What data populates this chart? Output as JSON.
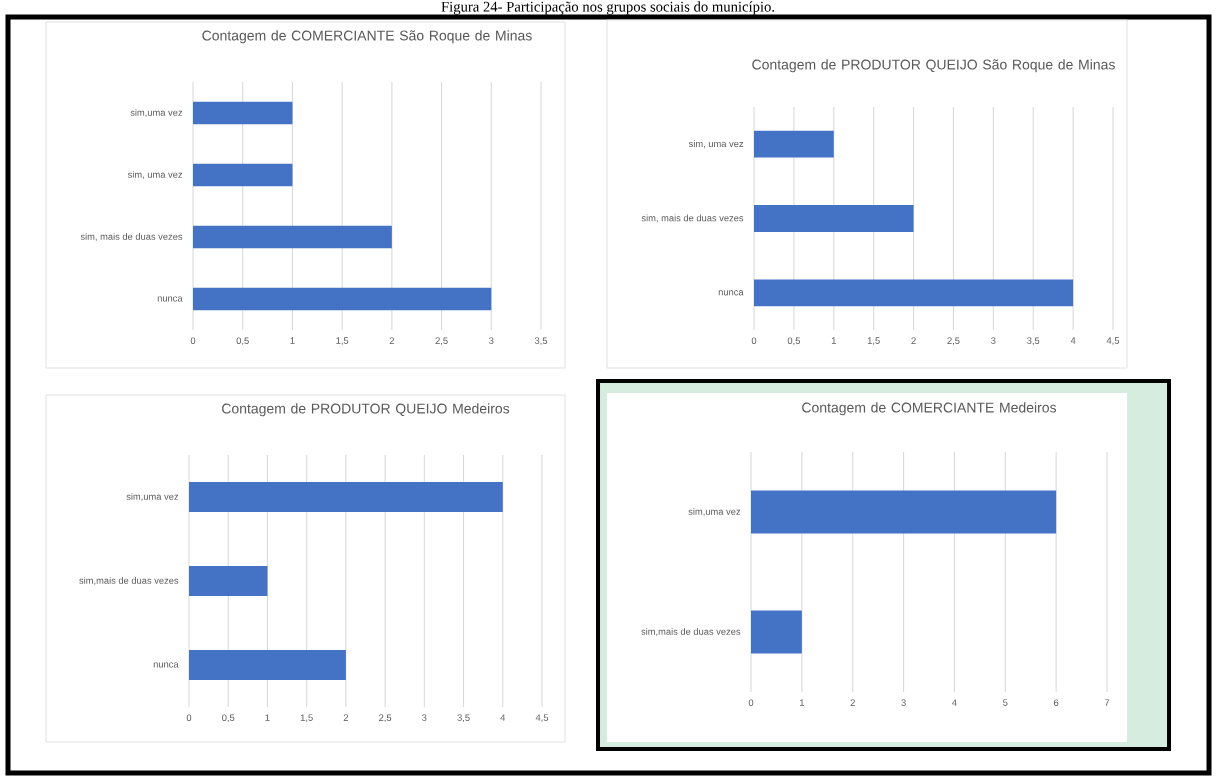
{
  "chart_data": [
    {
      "type": "bar",
      "orientation": "horizontal",
      "title": "Contagem de COMERCIANTE São Roque de Minas",
      "categories": [
        "sim,uma vez",
        "sim, uma vez",
        "sim, mais de duas vezes",
        "nunca"
      ],
      "values": [
        1,
        1,
        2,
        3
      ],
      "color": "#4472c4",
      "xlim": [
        0,
        3.5
      ],
      "xticks": [
        0,
        {
          "value": 0.5,
          "label": "0,5"
        },
        1,
        {
          "value": 1.5,
          "label": "1,5"
        },
        2,
        {
          "value": 2.5,
          "label": "2,5"
        },
        3,
        {
          "value": 3.5,
          "label": "3,5"
        }
      ],
      "grid": "x",
      "annotations": [
        "Figura 24- Participação nos grupos sociais do município."
      ]
    },
    {
      "type": "bar",
      "orientation": "horizontal",
      "title": "Contagem de PRODUTOR QUEIJO São Roque de Minas",
      "categories": [
        "sim, uma vez",
        "sim, mais de duas vezes",
        "nunca"
      ],
      "values": [
        1,
        2,
        4
      ],
      "color": "#4472c4",
      "xlim": [
        0,
        4.5
      ],
      "xticks": [
        0,
        {
          "value": 0.5,
          "label": "0,5"
        },
        1,
        {
          "value": 1.5,
          "label": "1,5"
        },
        2,
        {
          "value": 2.5,
          "label": "2,5"
        },
        3,
        {
          "value": 3.5,
          "label": "3,5"
        },
        4,
        {
          "value": 4.5,
          "label": "4,5"
        }
      ],
      "grid": "x"
    },
    {
      "type": "bar",
      "orientation": "horizontal",
      "title": "Contagem de PRODUTOR QUEIJO Medeiros",
      "categories": [
        "sim,uma vez",
        "sim,mais de duas vezes",
        "nunca"
      ],
      "values": [
        4,
        1,
        2
      ],
      "color": "#4472c4",
      "xlim": [
        0,
        4.5
      ],
      "xticks": [
        0,
        {
          "value": 0.5,
          "label": "0,5"
        },
        1,
        {
          "value": 1.5,
          "label": "1,5"
        },
        2,
        {
          "value": 2.5,
          "label": "2,5"
        },
        3,
        {
          "value": 3.5,
          "label": "3,5"
        },
        4,
        {
          "value": 4.5,
          "label": "4,5"
        }
      ],
      "grid": "x"
    },
    {
      "type": "bar",
      "orientation": "horizontal",
      "title": "Contagem de COMERCIANTE Medeiros",
      "categories": [
        "sim,uma vez",
        "sim,mais de duas vezes"
      ],
      "values": [
        6,
        1
      ],
      "color": "#4472c4",
      "xlim": [
        0,
        7
      ],
      "xticks": [
        0,
        1,
        2,
        3,
        4,
        5,
        6,
        7
      ],
      "grid": "x"
    }
  ]
}
